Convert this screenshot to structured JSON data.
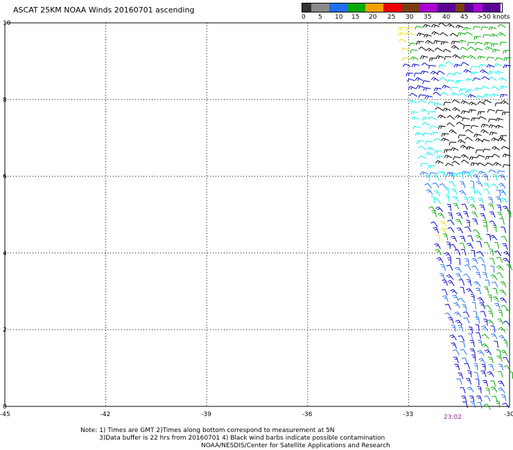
{
  "title": "ASCAT 25KM NOAA Winds 20160701 ascending",
  "legend": {
    "colors": [
      "#333333",
      "#888888",
      "#0af0f0",
      "#1e6ef0",
      "#0000c8",
      "#00aa00",
      "#f0e000",
      "#f0a000",
      "#f05000",
      "#f00000",
      "#c82828",
      "#7a3c14",
      "#c8a0a0",
      "#aa00d2",
      "#7800b4",
      "#5a0096"
    ],
    "labels": [
      "0",
      "5",
      "10",
      "15",
      "20",
      "25",
      "30",
      "35",
      "40",
      "45",
      ">50 knots"
    ]
  },
  "axes": {
    "x_ticks": [
      "-45",
      "-42",
      "-39",
      "-36",
      "-33",
      "-30"
    ],
    "y_ticks": [
      "0",
      "2",
      "4",
      "6",
      "8",
      "10"
    ]
  },
  "pass_time": "23:02",
  "notes": [
    "Note: 1) Times are GMT 2)Times along bottom correspond to measurement at 5N",
    "3)Data buffer is 22 hrs from 20160701 4) Black wind barbs indicate possible contamination",
    "NOAA/NESDIS/Center for Satellite Applications and Research"
  ]
}
